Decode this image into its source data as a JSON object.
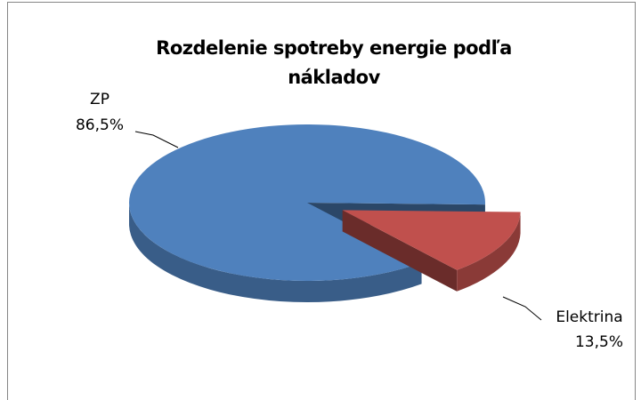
{
  "chart_data": {
    "type": "pie",
    "title": "Rozdelenie spotreby energie podľa nákladov",
    "categories": [
      "ZP",
      "Elektrina"
    ],
    "values": [
      86.5,
      13.5
    ],
    "value_labels": [
      "86,5%",
      "13,5%"
    ],
    "colors": [
      "#4f81bd",
      "#c0504d"
    ]
  }
}
